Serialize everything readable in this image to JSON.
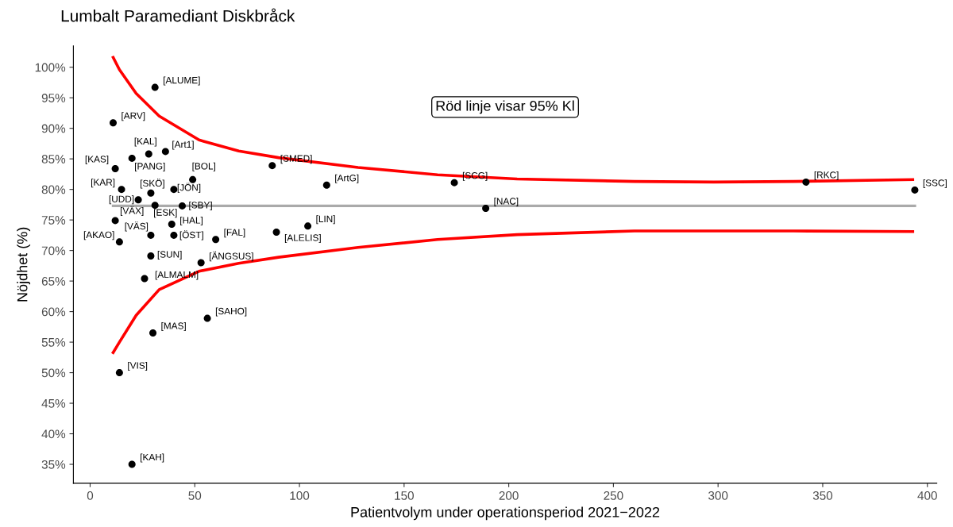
{
  "chart_data": {
    "type": "scatter",
    "title": "Lumbalt Paramediant Diskbråck",
    "xlabel": "Patientvolym under operationsperiod 2021−2022",
    "ylabel": "Nöjdhet (%)",
    "xlim": [
      -8,
      404.5
    ],
    "xticks": [
      0,
      50,
      100,
      150,
      200,
      250,
      300,
      350,
      400
    ],
    "ylim": [
      31.9,
      103.5
    ],
    "yticks": [
      {
        "value": 35,
        "label": "35%"
      },
      {
        "value": 40,
        "label": "40%"
      },
      {
        "value": 45,
        "label": "45%"
      },
      {
        "value": 50,
        "label": "50%"
      },
      {
        "value": 55,
        "label": "55%"
      },
      {
        "value": 60,
        "label": "60%"
      },
      {
        "value": 65,
        "label": "65%"
      },
      {
        "value": 70,
        "label": "70%"
      },
      {
        "value": 75,
        "label": "75%"
      },
      {
        "value": 80,
        "label": "80%"
      },
      {
        "value": 85,
        "label": "85%"
      },
      {
        "value": 90,
        "label": "90%"
      },
      {
        "value": 95,
        "label": "95%"
      },
      {
        "value": 100,
        "label": "100%"
      }
    ],
    "grid": false,
    "legend": false,
    "marker": "circle",
    "series": [
      {
        "type": "scatter",
        "color": "#000000",
        "x": [
          31,
          11,
          28,
          36,
          20,
          12,
          87,
          49,
          15,
          29,
          40,
          23,
          31,
          44,
          113,
          174,
          189,
          342,
          394,
          12,
          39,
          29,
          40,
          60,
          14,
          89,
          104,
          29,
          53,
          26,
          56,
          30,
          14,
          20
        ],
        "values": [
          96.7,
          90.9,
          85.8,
          86.2,
          85.1,
          83.4,
          83.9,
          81.6,
          80.0,
          79.4,
          80.0,
          78.3,
          77.4,
          77.3,
          80.7,
          81.1,
          76.9,
          81.2,
          79.9,
          74.9,
          74.3,
          72.5,
          72.5,
          71.8,
          71.4,
          73.0,
          74.0,
          69.1,
          68.0,
          65.4,
          58.9,
          56.5,
          50.0,
          35.0
        ]
      },
      {
        "type": "line",
        "color": "#ff0000",
        "marker": "none",
        "x": [
          11,
          14,
          22,
          33,
          52,
          71,
          90,
          128,
          166,
          204,
          260,
          298,
          336,
          393
        ],
        "values": [
          101.6,
          99.6,
          95.7,
          92.0,
          88.1,
          86.3,
          85.2,
          83.6,
          82.4,
          81.7,
          81.3,
          81.2,
          81.3,
          81.6
        ]
      },
      {
        "type": "line",
        "color": "#ff0000",
        "marker": "none",
        "x": [
          11,
          14,
          22,
          33,
          52,
          71,
          90,
          128,
          166,
          204,
          260,
          298,
          336,
          393
        ],
        "values": [
          53.3,
          55.0,
          59.4,
          63.6,
          66.6,
          67.9,
          68.9,
          70.5,
          71.8,
          72.6,
          73.2,
          73.2,
          73.2,
          73.1
        ]
      }
    ],
    "ref_lines": [
      {
        "axis": "y",
        "value": 77.3,
        "color": "#aaaaaa"
      }
    ],
    "annotations": [
      "Röd linje visar 95% Kl",
      {
        "text": "[ALUME]",
        "x": 31,
        "y": 96.7
      },
      {
        "text": "[ARV]",
        "x": 11,
        "y": 90.9
      },
      {
        "text": "[KAL]",
        "x": 28,
        "y": 85.8
      },
      {
        "text": "[Art1]",
        "x": 36,
        "y": 86.2
      },
      {
        "text": "[PANG]",
        "x": 20,
        "y": 85.1
      },
      {
        "text": "[KAS]",
        "x": 12,
        "y": 83.4
      },
      {
        "text": "[SMED]",
        "x": 87,
        "y": 83.9
      },
      {
        "text": "[BOL]",
        "x": 49,
        "y": 81.6
      },
      {
        "text": "[KAR]",
        "x": 15,
        "y": 80.0
      },
      {
        "text": "[SKÖ]",
        "x": 29,
        "y": 79.4
      },
      {
        "text": "[JÖN]",
        "x": 40,
        "y": 80.0
      },
      {
        "text": "[UDD]",
        "x": 23,
        "y": 78.3
      },
      {
        "text": "[ESK]",
        "x": 31,
        "y": 77.4
      },
      {
        "text": "[SBY]",
        "x": 44,
        "y": 77.3
      },
      {
        "text": "[ArtG]",
        "x": 113,
        "y": 80.7
      },
      {
        "text": "[SCG]",
        "x": 174,
        "y": 81.1
      },
      {
        "text": "[NAC]",
        "x": 189,
        "y": 76.9
      },
      {
        "text": "[RKC]",
        "x": 342,
        "y": 81.2
      },
      {
        "text": "[SSC]",
        "x": 394,
        "y": 79.9
      },
      {
        "text": "[VÄX]",
        "x": 12,
        "y": 74.9
      },
      {
        "text": "[HAL]",
        "x": 39,
        "y": 74.3
      },
      {
        "text": "[VÄS]",
        "x": 29,
        "y": 72.5
      },
      {
        "text": "[ÖST]",
        "x": 40,
        "y": 72.5
      },
      {
        "text": "[FAL]",
        "x": 60,
        "y": 71.8
      },
      {
        "text": "[AKAO]",
        "x": 14,
        "y": 71.4
      },
      {
        "text": "[ALELIS]",
        "x": 89,
        "y": 73.0
      },
      {
        "text": "[LIN]",
        "x": 104,
        "y": 74.0
      },
      {
        "text": "[SUN]",
        "x": 29,
        "y": 69.1
      },
      {
        "text": "[ÄNGSUS]",
        "x": 53,
        "y": 68.0
      },
      {
        "text": "[ALMALM]",
        "x": 26,
        "y": 65.4
      },
      {
        "text": "[SAHO]",
        "x": 56,
        "y": 58.9
      },
      {
        "text": "[MAS]",
        "x": 30,
        "y": 56.5
      },
      {
        "text": "[VIS]",
        "x": 14,
        "y": 50.0
      },
      {
        "text": "[KAH]",
        "x": 20,
        "y": 35.0
      }
    ]
  }
}
